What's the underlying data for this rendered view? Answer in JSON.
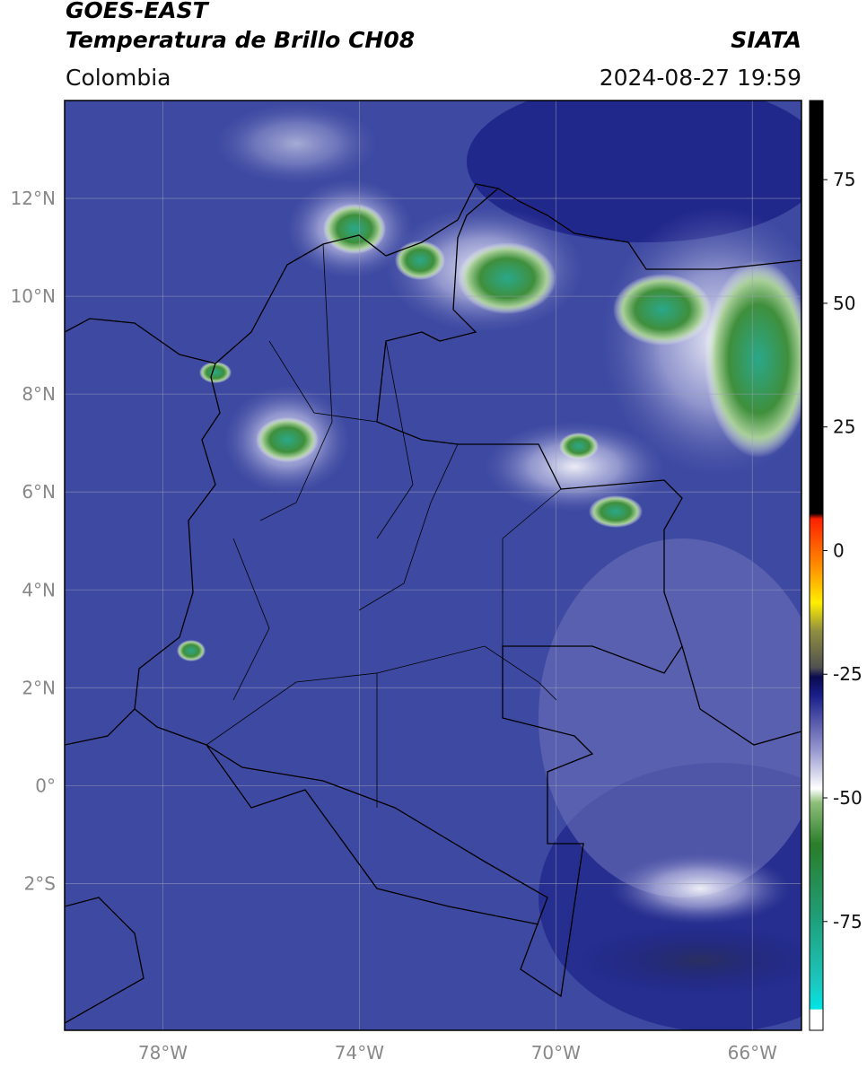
{
  "header": {
    "satellite": "GOES-EAST",
    "product": "Temperatura de Brillo CH08",
    "region": "Colombia",
    "source": "SIATA",
    "datetime": "2024-08-27 19:59"
  },
  "map": {
    "xlim": [
      -80,
      -65
    ],
    "ylim": [
      -5,
      14
    ],
    "lat_ticks": [
      {
        "value": 12,
        "label": "12°N"
      },
      {
        "value": 10,
        "label": "10°N"
      },
      {
        "value": 8,
        "label": "8°N"
      },
      {
        "value": 6,
        "label": "6°N"
      },
      {
        "value": 4,
        "label": "4°N"
      },
      {
        "value": 2,
        "label": "2°N"
      },
      {
        "value": 0,
        "label": "0°"
      },
      {
        "value": -2,
        "label": "2°S"
      }
    ],
    "lon_ticks": [
      {
        "value": -78,
        "label": "78°W"
      },
      {
        "value": -74,
        "label": "74°W"
      },
      {
        "value": -70,
        "label": "70°W"
      },
      {
        "value": -66,
        "label": "66°W"
      }
    ]
  },
  "colorbar": {
    "lim": [
      -97,
      91
    ],
    "ticks": [
      75,
      50,
      25,
      0,
      -25,
      -50,
      -75
    ]
  }
}
